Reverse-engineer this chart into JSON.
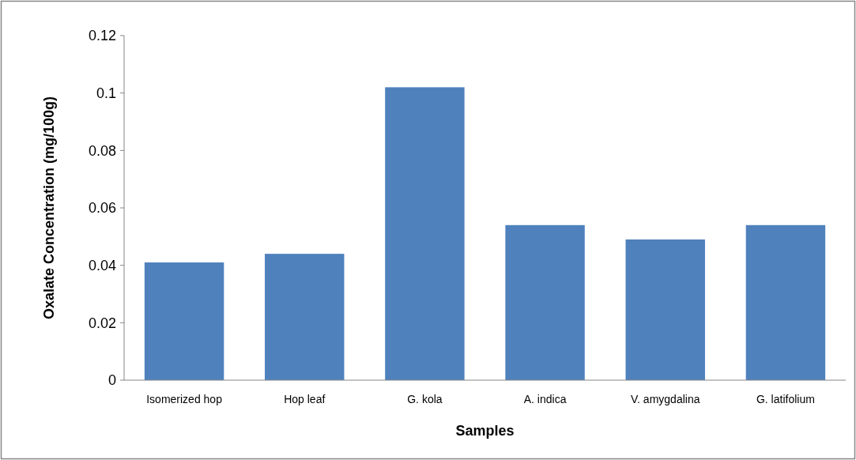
{
  "chart_data": {
    "type": "bar",
    "xlabel": "Samples",
    "ylabel": "Oxalate Concentration  (mg/100g)",
    "categories": [
      "Isomerized hop",
      "Hop leaf",
      "G. kola",
      "A. indica",
      "V. amygdalina",
      "G. latifolium"
    ],
    "values": [
      0.041,
      0.044,
      0.102,
      0.054,
      0.049,
      0.054
    ],
    "color": "#4f81bd",
    "ylim": [
      0,
      0.12
    ],
    "yticks": [
      0,
      0.02,
      0.04,
      0.06,
      0.08,
      0.1,
      0.12
    ],
    "grid": false
  }
}
